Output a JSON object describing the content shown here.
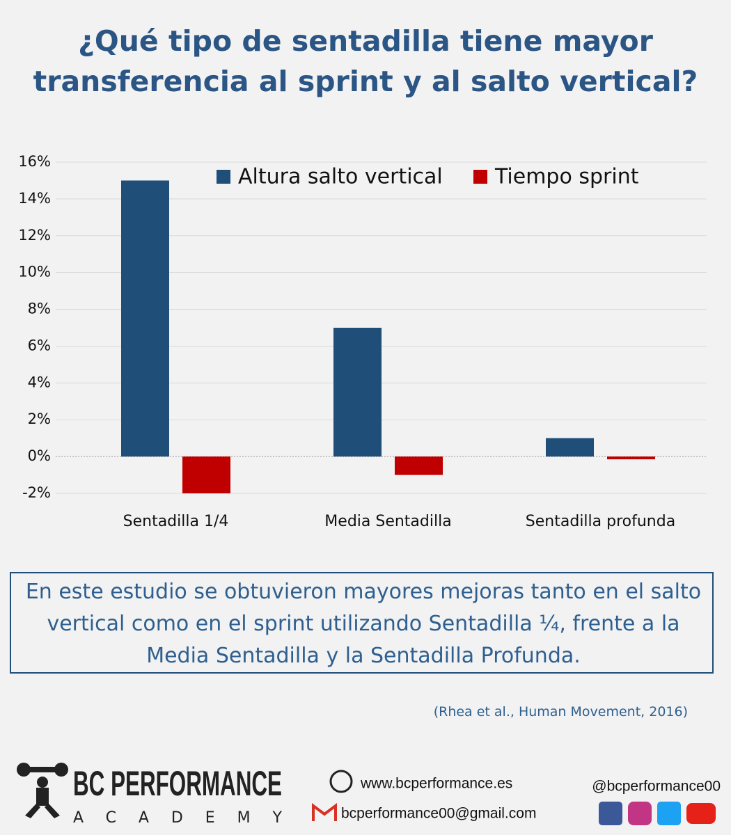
{
  "chart_data": {
    "type": "bar",
    "title": "¿Qué tipo de sentadilla tiene mayor transferencia al sprint y al salto vertical?",
    "categories": [
      "Sentadilla 1/4",
      "Media Sentadilla",
      "Sentadilla profunda"
    ],
    "series": [
      {
        "name": "Altura salto vertical",
        "color": "#1f4e79",
        "values": [
          15,
          7,
          1
        ]
      },
      {
        "name": "Tiempo sprint",
        "color": "#c00000",
        "values": [
          -2,
          -1,
          -0.15
        ]
      }
    ],
    "ylim": [
      -2,
      16
    ],
    "yticks": [
      {
        "value": -2,
        "label": "-2%"
      },
      {
        "value": 0,
        "label": "0%"
      },
      {
        "value": 2,
        "label": "2%"
      },
      {
        "value": 4,
        "label": "4%"
      },
      {
        "value": 6,
        "label": "6%"
      },
      {
        "value": 8,
        "label": "8%"
      },
      {
        "value": 10,
        "label": "10%"
      },
      {
        "value": 12,
        "label": "12%"
      },
      {
        "value": 14,
        "label": "14%"
      },
      {
        "value": 16,
        "label": "16%"
      }
    ],
    "grid": true,
    "legend": "top"
  },
  "summary": "En este estudio se obtuvieron mayores mejoras tanto en el salto vertical como en el sprint utilizando Sentadilla ¼, frente a la Media Sentadilla y la Sentadilla Profunda.",
  "citation": "(Rhea et al., Human Movement, 2016)",
  "footer": {
    "logo": "BC PERFORMANCE",
    "logo_sub": "ACADEMY",
    "website": "www.bcperformance.es",
    "email": "bcperformance00@gmail.com",
    "handle": "@bcperformance00"
  }
}
